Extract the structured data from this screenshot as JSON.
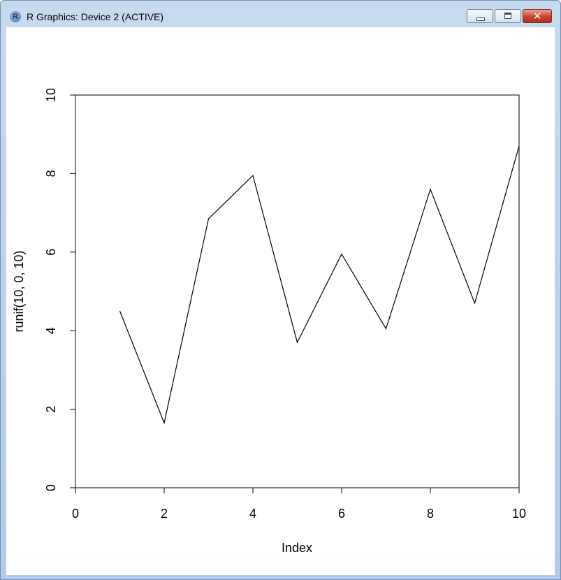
{
  "window": {
    "title": "R Graphics: Device 2 (ACTIVE)",
    "icon": "r-logo-icon",
    "icon_letter": "R"
  },
  "chart_data": {
    "type": "line",
    "xlabel": "Index",
    "ylabel": "runif(10, 0, 10)",
    "title": "",
    "xlim": [
      0,
      10
    ],
    "ylim": [
      0,
      10
    ],
    "xticks": [
      0,
      2,
      4,
      6,
      8,
      10
    ],
    "yticks": [
      0,
      2,
      4,
      6,
      8,
      10
    ],
    "x": [
      1,
      2,
      3,
      4,
      5,
      6,
      7,
      8,
      9,
      10
    ],
    "series": [
      {
        "values": [
          4.5,
          1.65,
          6.85,
          7.95,
          3.7,
          5.95,
          4.05,
          7.6,
          4.7,
          8.7
        ]
      }
    ],
    "grid": false,
    "line_color": "#000000"
  }
}
